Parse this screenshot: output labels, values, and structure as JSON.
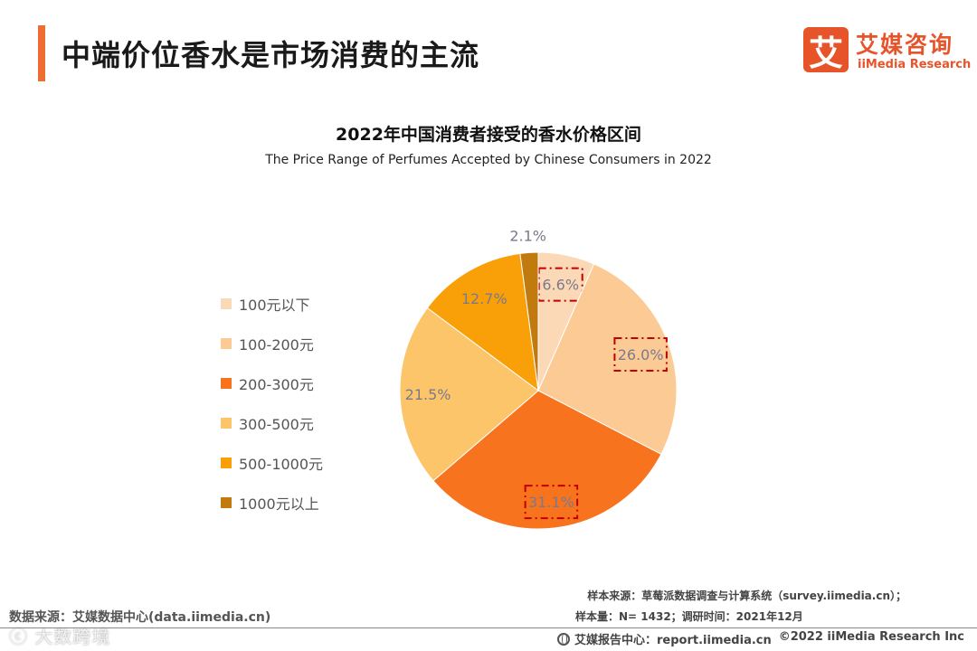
{
  "page": {
    "title": "中端价位香水是市场消费的主流",
    "accent_color": "#ee6d32"
  },
  "logo": {
    "mark": "艾",
    "cn": "艾媒咨询",
    "en": "iiMedia Research",
    "color": "#e8542a"
  },
  "chart_data": {
    "type": "pie",
    "title": "2022年中国消费者接受的香水价格区间",
    "subtitle": "The Price Range of Perfumes Accepted by Chinese Consumers in 2022",
    "unit": "%",
    "categories": [
      "100元以下",
      "100-200元",
      "200-300元",
      "300-500元",
      "500-1000元",
      "1000元以上"
    ],
    "values": [
      6.6,
      26.0,
      31.1,
      21.5,
      12.7,
      2.1
    ],
    "labels": [
      "6.6%",
      "26.0%",
      "31.1%",
      "21.5%",
      "12.7%",
      "2.1%"
    ],
    "colors": [
      "#fcd9b6",
      "#fccb95",
      "#f8731e",
      "#fdc56a",
      "#f99f08",
      "#c07a0e"
    ],
    "highlighted": [
      "6.6%",
      "26.0%",
      "31.1%"
    ],
    "start_angle_deg": 0,
    "direction": "clockwise",
    "legend_position": "left"
  },
  "footer": {
    "data_source": "数据来源：艾媒数据中心(data.iimedia.cn)",
    "watermark": "ⓒ 大数跨境",
    "sample_source": "样本来源：草莓派数据调查与计算系统（survey.iimedia.cn）；",
    "sample_size": "样本量：N= 1432；调研时间：2021年12月",
    "report_center": "艾媒报告中心：report.iimedia.cn",
    "copyright": "©2022  iiMedia Research  Inc"
  }
}
